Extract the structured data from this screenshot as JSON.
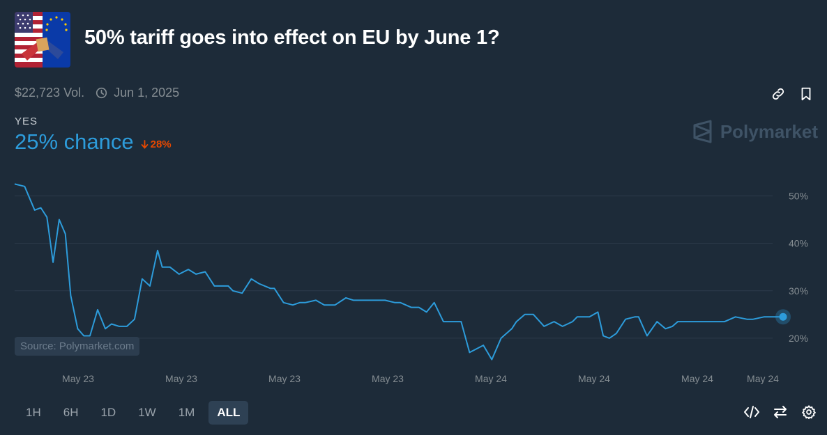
{
  "market": {
    "title": "50% tariff goes into effect on EU by June 1?",
    "volume": "$22,723 Vol.",
    "end_date": "Jun 1, 2025",
    "outcome": "YES",
    "chance": "25% chance",
    "change": "28%",
    "brand": "Polymarket",
    "source": "Source: Polymarket.com"
  },
  "time_ranges": [
    "1H",
    "6H",
    "1D",
    "1W",
    "1M",
    "ALL"
  ],
  "active_range": "ALL",
  "icons": {
    "thumbnail": "us-eu-flags-thumbnail",
    "clock": "clock-icon",
    "link": "link-icon",
    "bookmark": "bookmark-icon",
    "brand": "polymarket-logo-icon",
    "change": "arrow-down-icon",
    "embed": "code-icon",
    "swap": "swap-arrows-icon",
    "settings": "gear-icon"
  },
  "colors": {
    "background": "#1d2b39",
    "line": "#2d9cdb",
    "negative": "#e64800",
    "grid": "#2c3b4a"
  },
  "chart_data": {
    "type": "line",
    "ylim": [
      15,
      53
    ],
    "yticks": [
      20,
      30,
      40,
      50
    ],
    "ytick_labels": [
      "20%",
      "30%",
      "40%",
      "50%"
    ],
    "xtick_labels": [
      "May 23",
      "May 23",
      "May 23",
      "May 23",
      "May 24",
      "May 24",
      "May 24",
      "May 24"
    ],
    "grid": true,
    "series": [
      {
        "x": [
          0,
          1.3,
          2.6,
          3.4,
          4.2,
          5.0,
          5.8,
          6.6,
          7.3,
          8.2,
          9.0,
          9.8,
          10.8,
          11.8,
          12.6,
          13.6,
          14.6,
          15.6,
          16.6,
          17.6,
          18.6,
          19.2,
          20.2,
          21.4,
          22.6,
          23.6,
          24.8,
          26.0,
          27.8,
          28.4,
          29.6,
          30.8,
          31.8,
          33.3,
          33.8,
          35.0,
          36.2,
          37.1,
          37.8,
          39.2,
          40.3,
          41.7,
          43.1,
          44.1,
          45.2,
          47.2,
          48.2,
          49.5,
          50.2,
          51.6,
          52.6,
          53.6,
          54.6,
          55.8,
          57.2,
          58.1,
          59.2,
          61.0,
          62.1,
          63.3,
          64.7,
          65.3,
          66.4,
          67.5,
          68.9,
          70.2,
          71.3,
          72.6,
          73.2,
          74.8,
          75.9,
          76.6,
          77.4,
          78.3,
          79.5,
          80.7,
          81.2,
          82.3,
          83.6,
          84.7,
          85.6,
          86.3,
          87.1,
          88.4,
          89.6,
          91.0,
          92.4,
          93.8,
          95.3,
          96.1,
          97.5,
          98.6,
          100
        ],
        "y": [
          52.5,
          52.0,
          47.0,
          47.5,
          45.5,
          36.0,
          45.0,
          42.0,
          29.0,
          22.0,
          20.5,
          20.5,
          26.0,
          22.0,
          23.0,
          22.5,
          22.5,
          24.0,
          32.5,
          31.0,
          38.5,
          35.0,
          35.0,
          33.5,
          34.5,
          33.5,
          34.0,
          31.0,
          31.0,
          30.0,
          29.5,
          32.5,
          31.5,
          30.5,
          30.5,
          27.5,
          27.0,
          27.5,
          27.5,
          28.0,
          27.0,
          27.0,
          28.5,
          28.0,
          28.0,
          28.0,
          28.0,
          27.5,
          27.5,
          26.5,
          26.5,
          25.5,
          27.5,
          23.5,
          23.5,
          23.5,
          17.0,
          18.5,
          15.5,
          20.0,
          22.0,
          23.5,
          25.0,
          25.0,
          22.5,
          23.5,
          22.5,
          23.5,
          24.5,
          24.5,
          25.5,
          20.5,
          20.0,
          21.0,
          24.0,
          24.5,
          24.5,
          20.5,
          23.5,
          22.0,
          22.5,
          23.5,
          23.5,
          23.5,
          23.5,
          23.5,
          23.5,
          24.5,
          24.0,
          24.0,
          24.5,
          24.5,
          24.5
        ]
      }
    ]
  }
}
